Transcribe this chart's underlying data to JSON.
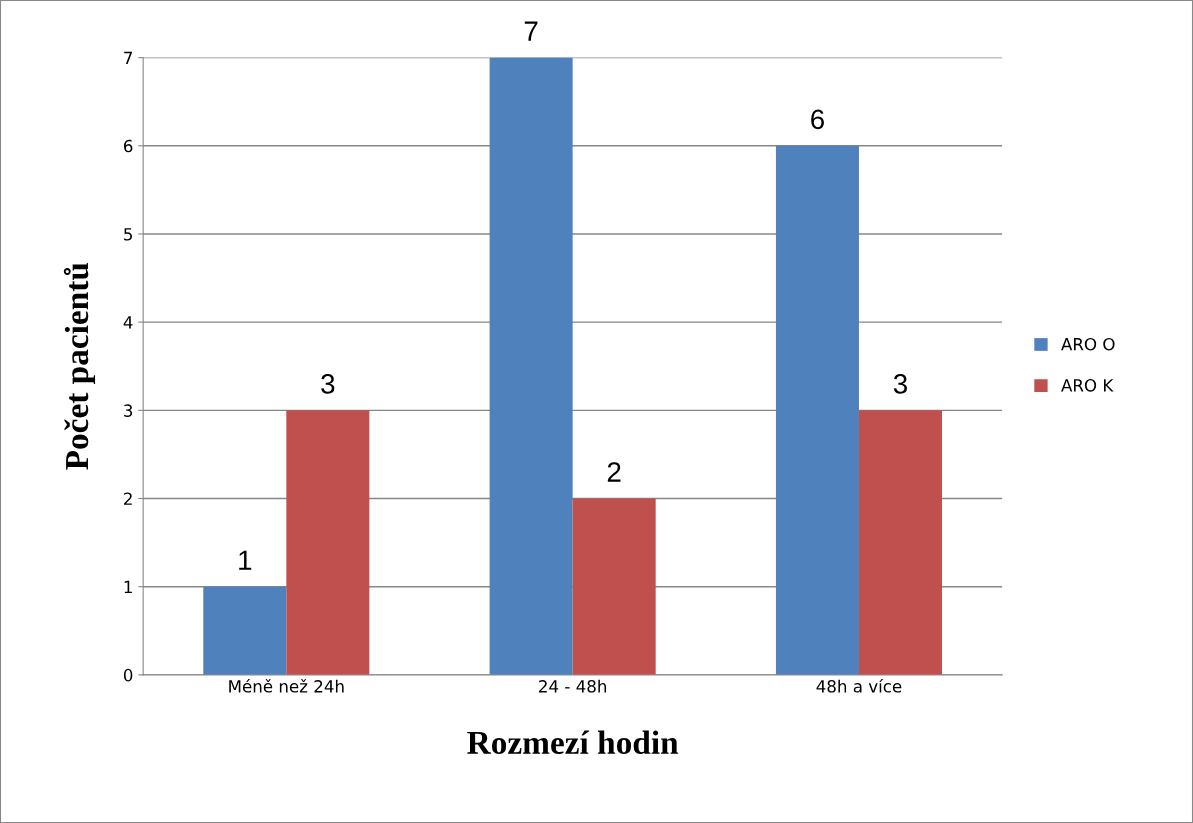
{
  "chart_data": {
    "type": "bar",
    "xlabel": "Rozmezí hodin",
    "ylabel": "Počet pacientů",
    "categories": [
      "Méně než 24h",
      "24 - 48h",
      "48h a více"
    ],
    "series": [
      {
        "name": "ARO O",
        "color": "#4f81bd",
        "values": [
          1,
          7,
          6
        ]
      },
      {
        "name": "ARO K",
        "color": "#c0504d",
        "values": [
          3,
          2,
          3
        ]
      }
    ],
    "ylim": [
      0,
      7
    ],
    "yticks": [
      0,
      1,
      2,
      3,
      4,
      5,
      6,
      7
    ],
    "grid": "y",
    "legend": "right",
    "data_labels": true
  }
}
